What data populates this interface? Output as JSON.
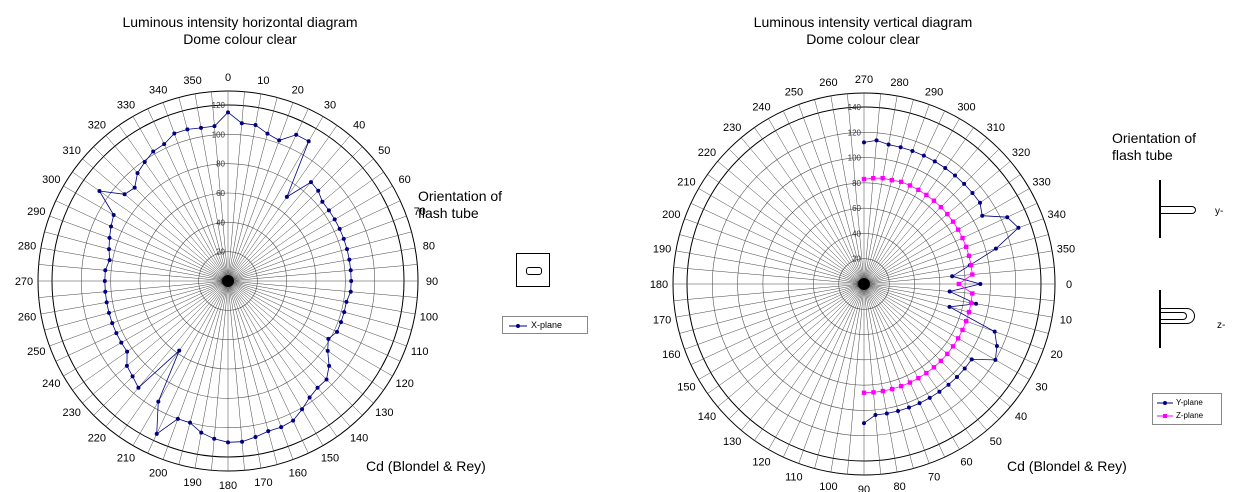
{
  "chart_data": [
    {
      "type": "polar-line",
      "title": "Luminous intensity horizontal diagram",
      "subtitle": "Dome colour clear",
      "caption": "Cd (Blondel & Rey)",
      "orientation_label": "Orientation of flash tube",
      "angle_ticks": [
        "0",
        "10",
        "20",
        "30",
        "40",
        "50",
        "60",
        "70",
        "80",
        "90",
        "100",
        "110",
        "120",
        "130",
        "140",
        "150",
        "160",
        "170",
        "180",
        "190",
        "200",
        "210",
        "220",
        "230",
        "240",
        "250",
        "260",
        "270",
        "280",
        "290",
        "300",
        "310",
        "320",
        "330",
        "340",
        "350"
      ],
      "angle_tick_values": [
        0,
        10,
        20,
        30,
        40,
        50,
        60,
        70,
        80,
        90,
        100,
        110,
        120,
        130,
        140,
        150,
        160,
        170,
        180,
        190,
        200,
        210,
        220,
        230,
        240,
        250,
        260,
        270,
        280,
        290,
        300,
        310,
        320,
        330,
        340,
        350
      ],
      "radial_ticks": [
        "0",
        "20",
        "40",
        "60",
        "80",
        "100",
        "120"
      ],
      "rmax": 120,
      "series": [
        {
          "name": "X-plane",
          "color": "#000080",
          "angles": [
            0,
            5,
            10,
            15,
            20,
            25,
            30,
            35,
            40,
            45,
            50,
            55,
            60,
            65,
            70,
            75,
            80,
            85,
            90,
            95,
            100,
            105,
            110,
            115,
            120,
            125,
            130,
            135,
            140,
            145,
            150,
            155,
            160,
            165,
            170,
            175,
            180,
            185,
            190,
            195,
            200,
            205,
            210,
            215,
            220,
            225,
            230,
            235,
            240,
            245,
            250,
            255,
            260,
            265,
            270,
            275,
            280,
            285,
            290,
            295,
            300,
            305,
            310,
            315,
            320,
            325,
            330,
            335,
            340,
            345,
            350,
            355
          ],
          "values": [
            115,
            108,
            108,
            104,
            102,
            110,
            110,
            70,
            88,
            87,
            84,
            84,
            84,
            84,
            84,
            84,
            84,
            84,
            84,
            84,
            82,
            82,
            82,
            82,
            79,
            83,
            90,
            95,
            95,
            97,
            101,
            105,
            106,
            106,
            108,
            110,
            110,
            108,
            105,
            100,
            100,
            115,
            95,
            58,
            95,
            92,
            90,
            84,
            84,
            84,
            84,
            84,
            84,
            84,
            84,
            84,
            82,
            84,
            86,
            88,
            90,
            107,
            92,
            90,
            96,
            99,
            102,
            103,
            107,
            107,
            106,
            106
          ]
        }
      ]
    },
    {
      "type": "polar-line",
      "title": "Luminous intensity vertical diagram",
      "subtitle": "Dome colour clear",
      "caption": "Cd (Blondel & Rey)",
      "orientation_label": "Orientation of flash tube",
      "tube_labels": [
        "y-",
        "z-"
      ],
      "angle_ticks": [
        "270",
        "280",
        "290",
        "300",
        "310",
        "320",
        "330",
        "340",
        "350",
        "0",
        "10",
        "20",
        "30",
        "40",
        "50",
        "60",
        "70",
        "80",
        "90",
        "100",
        "110",
        "120",
        "130",
        "140",
        "150",
        "160",
        "170",
        "180",
        "190",
        "200",
        "210",
        "220",
        "230",
        "240",
        "250",
        "260"
      ],
      "angle_tick_values": [
        270,
        280,
        290,
        300,
        310,
        320,
        330,
        340,
        350,
        0,
        10,
        20,
        30,
        40,
        50,
        60,
        70,
        80,
        90,
        100,
        110,
        120,
        130,
        140,
        150,
        160,
        170,
        180,
        190,
        200,
        210,
        220,
        230,
        240,
        250,
        260
      ],
      "radial_ticks": [
        "0",
        "20",
        "40",
        "60",
        "80",
        "100",
        "120",
        "140"
      ],
      "rmax": 140,
      "series": [
        {
          "name": "Y-plane",
          "color": "#000080",
          "angles": [
            270,
            275,
            280,
            285,
            290,
            295,
            300,
            305,
            310,
            315,
            320,
            325,
            330,
            335,
            340,
            345,
            350,
            355,
            0,
            5,
            10,
            15,
            20,
            25,
            30,
            35,
            40,
            45,
            50,
            55,
            60,
            65,
            70,
            75,
            80,
            85,
            90
          ],
          "values": [
            112,
            114,
            112,
            112,
            112,
            112,
            112,
            112,
            112,
            112,
            112,
            112,
            108,
            125,
            130,
            108,
            85,
            70,
            92,
            68,
            90,
            70,
            110,
            116,
            120,
            104,
            104,
            104,
            104,
            104,
            104,
            104,
            104,
            104,
            104,
            104,
            110
          ]
        },
        {
          "name": "Z-plane",
          "color": "#ff00ff",
          "angles": [
            270,
            275,
            280,
            285,
            290,
            295,
            300,
            305,
            310,
            315,
            320,
            325,
            330,
            335,
            340,
            345,
            350,
            355,
            0,
            5,
            10,
            15,
            20,
            25,
            30,
            35,
            40,
            45,
            50,
            55,
            60,
            65,
            70,
            75,
            80,
            85,
            90
          ],
          "values": [
            83,
            84,
            85,
            85,
            86,
            86,
            86,
            86,
            86,
            86,
            86,
            86,
            86,
            86,
            86,
            86,
            86,
            86,
            75,
            86,
            86,
            86,
            86,
            86,
            86,
            86,
            86,
            86,
            86,
            86,
            86,
            86,
            86,
            86,
            86,
            86,
            86
          ]
        }
      ]
    }
  ]
}
